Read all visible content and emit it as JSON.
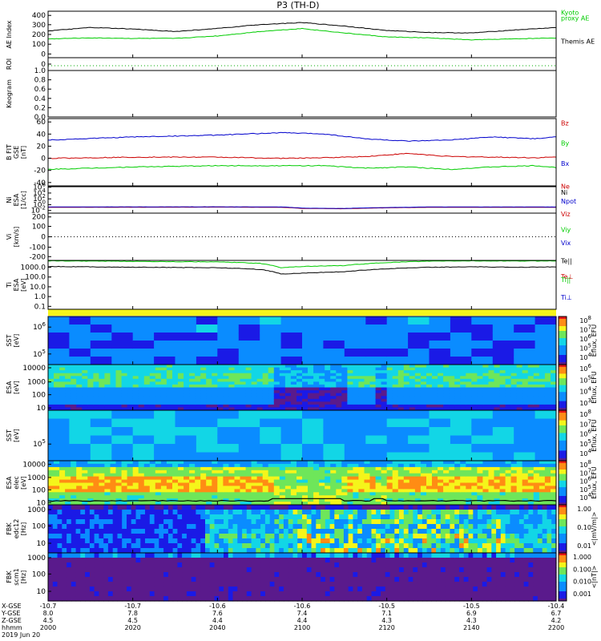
{
  "title": "P3 (TH-D)",
  "chart_data": {
    "type": "line",
    "title": "P3 (TH-D)",
    "x_ticks": [
      {
        "time": "2000",
        "xgse": "-10.7",
        "ygse": "8.0",
        "zgse": "4.5"
      },
      {
        "time": "2020",
        "xgse": "-10.7",
        "ygse": "7.8",
        "zgse": "4.5"
      },
      {
        "time": "2040",
        "xgse": "-10.6",
        "ygse": "7.6",
        "zgse": "4.4"
      },
      {
        "time": "2100",
        "xgse": "-10.6",
        "ygse": "7.4",
        "zgse": "4.4"
      },
      {
        "time": "2120",
        "xgse": "-10.5",
        "ygse": "7.1",
        "zgse": "4.3"
      },
      {
        "time": "2140",
        "xgse": "-10.5",
        "ygse": "6.9",
        "zgse": "4.3"
      },
      {
        "time": "2200",
        "xgse": "-10.4",
        "ygse": "6.7",
        "zgse": "4.2"
      }
    ],
    "x_row_labels": [
      "X-GSE",
      "Y-GSE",
      "Z-GSE",
      "hhmm",
      "2019 Jun 20"
    ],
    "panels": [
      {
        "id": "ae",
        "ylabel": [
          "AE Index"
        ],
        "yticks": [
          "400",
          "300",
          "200",
          "100",
          "0"
        ],
        "legend": [
          {
            "text": "Kyoto",
            "color": "#00cc00"
          },
          {
            "text": "proxy AE",
            "color": "#00cc00"
          },
          {
            "text": "Themis AE",
            "color": "#000000"
          }
        ],
        "series": [
          {
            "name": "Themis AE",
            "color": "#000000",
            "x_min": [
              0,
              10,
              20,
              30,
              40,
              50,
              60,
              70,
              80,
              90,
              100,
              110,
              120
            ],
            "values": [
              220,
              255,
              240,
              215,
              245,
              285,
              305,
              270,
              225,
              205,
              200,
              230,
              255
            ]
          },
          {
            "name": "Kyoto proxy AE",
            "color": "#00cc00",
            "x_min": [
              0,
              10,
              20,
              30,
              40,
              50,
              60,
              70,
              80,
              90,
              100,
              110,
              120
            ],
            "values": [
              140,
              150,
              145,
              145,
              170,
              215,
              245,
              200,
              160,
              150,
              130,
              140,
              150
            ]
          }
        ]
      },
      {
        "id": "roi",
        "ylabel": [
          "ROI"
        ],
        "yticks": [
          "0"
        ]
      },
      {
        "id": "keogram",
        "ylabel": [
          "Keogram"
        ],
        "yticks": [
          "1.0",
          "0.8",
          "0.6",
          "0.4",
          "0.2",
          "0.0"
        ]
      },
      {
        "id": "bfield",
        "ylabel": [
          "B FIT",
          "GSE",
          "[nT]"
        ],
        "yticks": [
          "60",
          "40",
          "20",
          "0",
          "-20",
          "-40"
        ],
        "legend": [
          {
            "text": "Bz",
            "color": "#cc0000"
          },
          {
            "text": "By",
            "color": "#00cc00"
          },
          {
            "text": "Bx",
            "color": "#0000cc"
          }
        ],
        "series": [
          {
            "name": "Bz",
            "color": "#cc0000",
            "x_min": [
              0,
              20,
              40,
              55,
              65,
              75,
              85,
              95,
              105,
              115,
              120
            ],
            "values": [
              0,
              2,
              2,
              0,
              1,
              3,
              8,
              3,
              2,
              1,
              2
            ]
          },
          {
            "name": "By",
            "color": "#00cc00",
            "x_min": [
              0,
              20,
              40,
              55,
              65,
              75,
              85,
              95,
              105,
              115,
              120
            ],
            "values": [
              -18,
              -14,
              -12,
              -12,
              -12,
              -16,
              -14,
              -18,
              -14,
              -12,
              -15
            ]
          },
          {
            "name": "Bx",
            "color": "#0000cc",
            "x_min": [
              0,
              20,
              40,
              55,
              65,
              75,
              85,
              95,
              105,
              115,
              120
            ],
            "values": [
              30,
              35,
              38,
              42,
              40,
              32,
              28,
              30,
              35,
              32,
              35
            ]
          }
        ]
      },
      {
        "id": "density",
        "ylabel": [
          "Ni",
          "ESA",
          "[1/cc]"
        ],
        "yticks": [
          "10^6",
          "10^4",
          "10^2",
          "10^0",
          "10^-2"
        ],
        "legend": [
          {
            "text": "Ne",
            "color": "#cc0000"
          },
          {
            "text": "Ni",
            "color": "#000000"
          },
          {
            "text": "Npot",
            "color": "#0000cc"
          }
        ],
        "series": [
          {
            "name": "Ne",
            "color": "#cc0000",
            "x_min": [
              0,
              40,
              55,
              60,
              70,
              80,
              90,
              120
            ],
            "values": [
              0.3,
              0.35,
              0.3,
              0.12,
              0.1,
              0.2,
              0.3,
              0.3
            ]
          },
          {
            "name": "Npot",
            "color": "#0000cc",
            "x_min": [
              0,
              40,
              55,
              60,
              70,
              80,
              90,
              120
            ],
            "values": [
              0.4,
              0.45,
              0.4,
              0.15,
              0.12,
              0.25,
              0.4,
              0.4
            ]
          }
        ]
      },
      {
        "id": "velocity",
        "ylabel": [
          "Vi",
          "[km/s]"
        ],
        "yticks": [
          "200",
          "100",
          "0",
          "-100",
          "-200"
        ],
        "legend": [
          {
            "text": "Viz",
            "color": "#cc0000"
          },
          {
            "text": "Viy",
            "color": "#00cc00"
          },
          {
            "text": "Vix",
            "color": "#0000cc"
          }
        ]
      },
      {
        "id": "temperature",
        "ylabel": [
          "Ti",
          "ESA",
          "[eV]"
        ],
        "yticks": [
          "1000.0",
          "100.0",
          "10.0",
          "1.0",
          "0.1"
        ],
        "legend": [
          {
            "text": "Te||",
            "color": "#000000"
          },
          {
            "text": "Te⊥",
            "color": "#cc0000"
          },
          {
            "text": "Ti||",
            "color": "#00cc00"
          },
          {
            "text": "Ti⊥",
            "color": "#0000cc"
          }
        ],
        "series": [
          {
            "name": "Ti||",
            "color": "#00cc00",
            "x_min": [
              0,
              20,
              40,
              50,
              55,
              60,
              70,
              80,
              90,
              100,
              110,
              120
            ],
            "values": [
              4500,
              4000,
              3500,
              2500,
              900,
              1200,
              1500,
              3000,
              4200,
              4500,
              4300,
              4500
            ]
          },
          {
            "name": "Te||",
            "color": "#000000",
            "x_min": [
              0,
              20,
              40,
              50,
              55,
              60,
              70,
              80,
              90,
              100,
              110,
              120
            ],
            "values": [
              1200,
              1000,
              900,
              600,
              200,
              250,
              350,
              700,
              1000,
              1100,
              1000,
              1100
            ]
          }
        ]
      },
      {
        "id": "sst_ion",
        "ylabel": [
          "SST",
          "[eV]"
        ],
        "yticks": [
          "10^6",
          "10^5"
        ],
        "cbar_ticks": [
          "10^8",
          "10^7",
          "10^6",
          "10^5",
          "10^4"
        ],
        "cbar_label": "Eflux, EFU"
      },
      {
        "id": "esa_ion",
        "ylabel": [
          "ESA",
          "[eV]"
        ],
        "yticks": [
          "10000",
          "1000",
          "100",
          "10"
        ],
        "cbar_ticks": [
          "10^6",
          "10^5",
          "10^4",
          "10^3"
        ],
        "cbar_label": "Eflux, EFU"
      },
      {
        "id": "sst_elec",
        "ylabel": [
          "SST",
          "[eV]"
        ],
        "yticks": [
          "10^5"
        ],
        "cbar_ticks": [
          "10^8",
          "10^7",
          "10^6",
          "10^5",
          "10^4"
        ],
        "cbar_label": "Eflux, EFU"
      },
      {
        "id": "esa_elec",
        "ylabel": [
          "ESA",
          "elec",
          "[eV]"
        ],
        "yticks": [
          "10000",
          "1000",
          "100",
          "10"
        ],
        "cbar_ticks": [
          "10^8",
          "10^7",
          "10^6",
          "10^5",
          "10^4"
        ],
        "cbar_label": "Eflux, EFU"
      },
      {
        "id": "fbk_edc",
        "ylabel": [
          "FBK",
          "edc12",
          "[Hz]"
        ],
        "yticks": [
          "1000",
          "100",
          "10"
        ],
        "cbar_ticks": [
          "1.00",
          "0.10",
          "0.01"
        ],
        "cbar_label": "<|mV/m|>"
      },
      {
        "id": "fbk_scm",
        "ylabel": [
          "FBK",
          "scm1",
          "[Hz]"
        ],
        "yticks": [
          "1000",
          "100",
          "10"
        ],
        "cbar_ticks": [
          "1.000",
          "0.100",
          "0.010",
          "0.001"
        ],
        "cbar_label": "<|nT|>"
      }
    ]
  }
}
